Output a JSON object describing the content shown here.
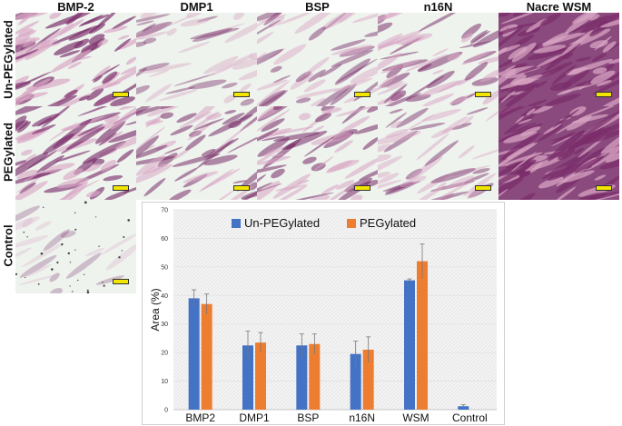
{
  "columns": [
    "BMP-2",
    "DMP1",
    "BSP",
    "n16N",
    "Nacre WSM"
  ],
  "rows": [
    "Un-PEGylated",
    "PEGylated",
    "Control"
  ],
  "colors": {
    "unpeg": "#4472C4",
    "peg": "#ED7D31",
    "stain_light": "#d9a6c4",
    "stain_dark": "#7a2d6a",
    "background_tile": "#eef3ee",
    "scale_bar": "#f2e600"
  },
  "chart_data": {
    "type": "bar",
    "categories": [
      "BMP2",
      "DMP1",
      "BSP",
      "n16N",
      "WSM",
      "Control"
    ],
    "series": [
      {
        "name": "Un-PEGylated",
        "values": [
          39,
          22.5,
          22.5,
          19.5,
          45.3,
          1.2
        ],
        "errors": [
          3,
          5,
          4,
          4.5,
          0.5,
          0.5
        ]
      },
      {
        "name": "PEGylated",
        "values": [
          37,
          23.5,
          23,
          21,
          52,
          null
        ],
        "errors": [
          3.5,
          3.5,
          3.5,
          4.5,
          6,
          null
        ]
      }
    ],
    "ylabel": "Area (%)",
    "xlabel": "",
    "ylim": [
      0,
      70
    ],
    "yticks": [
      0,
      10,
      20,
      30,
      40,
      50,
      60,
      70
    ],
    "legend_position": "top"
  }
}
